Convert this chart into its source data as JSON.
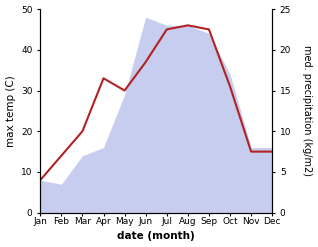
{
  "months": [
    "Jan",
    "Feb",
    "Mar",
    "Apr",
    "May",
    "Jun",
    "Jul",
    "Aug",
    "Sep",
    "Oct",
    "Nov",
    "Dec"
  ],
  "temp_max": [
    8,
    14,
    20,
    33,
    30,
    37,
    45,
    46,
    45,
    31,
    15,
    15
  ],
  "precipitation": [
    8,
    7,
    14,
    16,
    29,
    48,
    46,
    46,
    44,
    34,
    16,
    16
  ],
  "temp_color": "#b22222",
  "precip_fill_color": "#b0b8e8",
  "temp_ylim": [
    0,
    50
  ],
  "precip_ylim": [
    0,
    25
  ],
  "xlabel": "date (month)",
  "ylabel_left": "max temp (C)",
  "ylabel_right": "med. precipitation (kg/m2)",
  "label_fontsize": 7.5,
  "tick_fontsize": 6.5,
  "bg_color": "#ffffff"
}
